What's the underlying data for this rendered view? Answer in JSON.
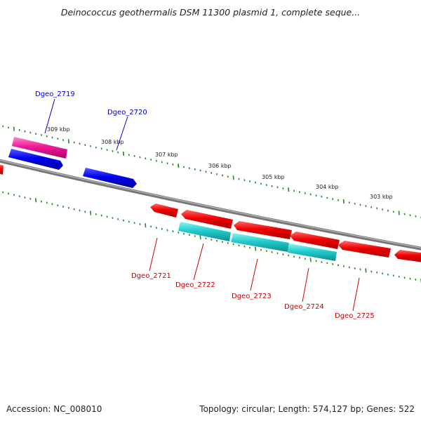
{
  "title": "Deinococcus geothermalis DSM 11300 plasmid 1, complete seque...",
  "footer": {
    "accession": "Accession: NC_008010",
    "summary": "Topology: circular; Length: 574,127 bp; Genes: 522"
  },
  "scale_labels": [
    "309 kbp",
    "308 kbp",
    "307 kbp",
    "306 kbp",
    "305 kbp",
    "304 kbp",
    "303 kbp"
  ],
  "genes": {
    "forward": [
      "Dgeo_2719",
      "Dgeo_2720"
    ],
    "reverse": [
      "Dgeo_2721",
      "Dgeo_2722",
      "Dgeo_2723",
      "Dgeo_2724",
      "Dgeo_2725"
    ]
  },
  "colors": {
    "forward_label": "#0000cc",
    "reverse_label": "#cc0000",
    "tick": "#228b22",
    "backbone": "#808080"
  }
}
